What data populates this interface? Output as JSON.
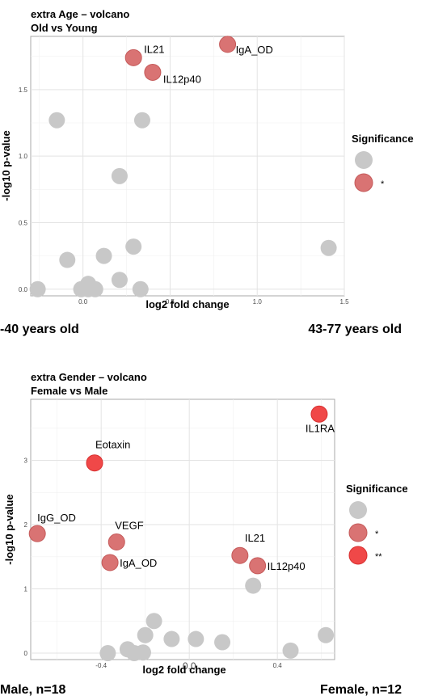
{
  "chart_data": [
    {
      "type": "scatter",
      "title": "extra Age – volcano",
      "subtitle": "Old vs Young",
      "xlabel": "log2 fold change",
      "ylabel": "-log10 p-value",
      "xlim": [
        -0.3,
        1.5
      ],
      "ylim": [
        -0.05,
        1.9
      ],
      "x_ticks": [
        "0.0",
        "0.5",
        "1.0",
        "1.5"
      ],
      "y_ticks": [
        "0.0",
        "0.5",
        "1.0",
        "1.5"
      ],
      "grid": true,
      "legend": {
        "title": "Significance",
        "position": "right",
        "items": [
          {
            "key": "ns",
            "label": "",
            "color": "#c8c8c8"
          },
          {
            "key": "*",
            "label": "*",
            "color": "#d97373"
          }
        ]
      },
      "points": [
        {
          "label": "IgA_OD",
          "x": 0.83,
          "y": 1.84,
          "sig": "*"
        },
        {
          "label": "IL21",
          "x": 0.29,
          "y": 1.74,
          "sig": "*"
        },
        {
          "label": "IL12p40",
          "x": 0.4,
          "y": 1.63,
          "sig": "*"
        },
        {
          "label": "",
          "x": -0.15,
          "y": 1.27,
          "sig": "ns"
        },
        {
          "label": "",
          "x": 0.34,
          "y": 1.27,
          "sig": "ns"
        },
        {
          "label": "",
          "x": 0.21,
          "y": 0.85,
          "sig": "ns"
        },
        {
          "label": "",
          "x": 0.29,
          "y": 0.32,
          "sig": "ns"
        },
        {
          "label": "",
          "x": 1.41,
          "y": 0.31,
          "sig": "ns"
        },
        {
          "label": "",
          "x": 0.12,
          "y": 0.25,
          "sig": "ns"
        },
        {
          "label": "",
          "x": -0.09,
          "y": 0.22,
          "sig": "ns"
        },
        {
          "label": "",
          "x": 0.21,
          "y": 0.07,
          "sig": "ns"
        },
        {
          "label": "",
          "x": 0.03,
          "y": 0.04,
          "sig": "ns"
        },
        {
          "label": "",
          "x": -0.26,
          "y": 0.0,
          "sig": "ns"
        },
        {
          "label": "",
          "x": -0.01,
          "y": 0.0,
          "sig": "ns"
        },
        {
          "label": "",
          "x": 0.03,
          "y": 0.0,
          "sig": "ns"
        },
        {
          "label": "",
          "x": 0.07,
          "y": 0.0,
          "sig": "ns"
        },
        {
          "label": "",
          "x": 0.33,
          "y": 0.0,
          "sig": "ns"
        }
      ],
      "caption_left": "-40 years old",
      "caption_right": "43-77 years old"
    },
    {
      "type": "scatter",
      "title": "extra Gender – volcano",
      "subtitle": "Female vs Male",
      "xlabel": "log2 fold change",
      "ylabel": "-log10 p-value",
      "xlim": [
        -0.72,
        0.66
      ],
      "ylim": [
        -0.1,
        3.95
      ],
      "x_ticks": [
        "-0.4",
        "0.0",
        "0.4"
      ],
      "x_tick_values": [
        -0.4,
        0.0,
        0.4
      ],
      "y_ticks": [
        "0",
        "1",
        "2",
        "3"
      ],
      "grid": true,
      "legend": {
        "title": "Significance",
        "position": "right",
        "items": [
          {
            "key": "ns",
            "label": "",
            "color": "#c8c8c8"
          },
          {
            "key": "*",
            "label": "*",
            "color": "#d97373"
          },
          {
            "key": "**",
            "label": "**",
            "color": "#f04848"
          }
        ]
      },
      "points": [
        {
          "label": "IL1RA",
          "x": 0.59,
          "y": 3.72,
          "sig": "**"
        },
        {
          "label": "Eotaxin",
          "x": -0.43,
          "y": 2.96,
          "sig": "**"
        },
        {
          "label": "IgG_OD",
          "x": -0.69,
          "y": 1.86,
          "sig": "*"
        },
        {
          "label": "VEGF",
          "x": -0.33,
          "y": 1.73,
          "sig": "*"
        },
        {
          "label": "IgA_OD",
          "x": -0.36,
          "y": 1.41,
          "sig": "*"
        },
        {
          "label": "IL21",
          "x": 0.23,
          "y": 1.52,
          "sig": "*"
        },
        {
          "label": "IL12p40",
          "x": 0.31,
          "y": 1.36,
          "sig": "*"
        },
        {
          "label": "",
          "x": 0.29,
          "y": 1.05,
          "sig": "ns"
        },
        {
          "label": "",
          "x": -0.16,
          "y": 0.5,
          "sig": "ns"
        },
        {
          "label": "",
          "x": -0.2,
          "y": 0.28,
          "sig": "ns"
        },
        {
          "label": "",
          "x": -0.08,
          "y": 0.22,
          "sig": "ns"
        },
        {
          "label": "",
          "x": 0.03,
          "y": 0.22,
          "sig": "ns"
        },
        {
          "label": "",
          "x": 0.15,
          "y": 0.17,
          "sig": "ns"
        },
        {
          "label": "",
          "x": 0.62,
          "y": 0.28,
          "sig": "ns"
        },
        {
          "label": "",
          "x": 0.46,
          "y": 0.04,
          "sig": "ns"
        },
        {
          "label": "",
          "x": -0.37,
          "y": 0.0,
          "sig": "ns"
        },
        {
          "label": "",
          "x": -0.28,
          "y": 0.06,
          "sig": "ns"
        },
        {
          "label": "",
          "x": -0.25,
          "y": 0.0,
          "sig": "ns"
        },
        {
          "label": "",
          "x": -0.21,
          "y": 0.01,
          "sig": "ns"
        }
      ],
      "caption_left": "Male, n=18",
      "caption_right": "Female, n=12"
    }
  ]
}
